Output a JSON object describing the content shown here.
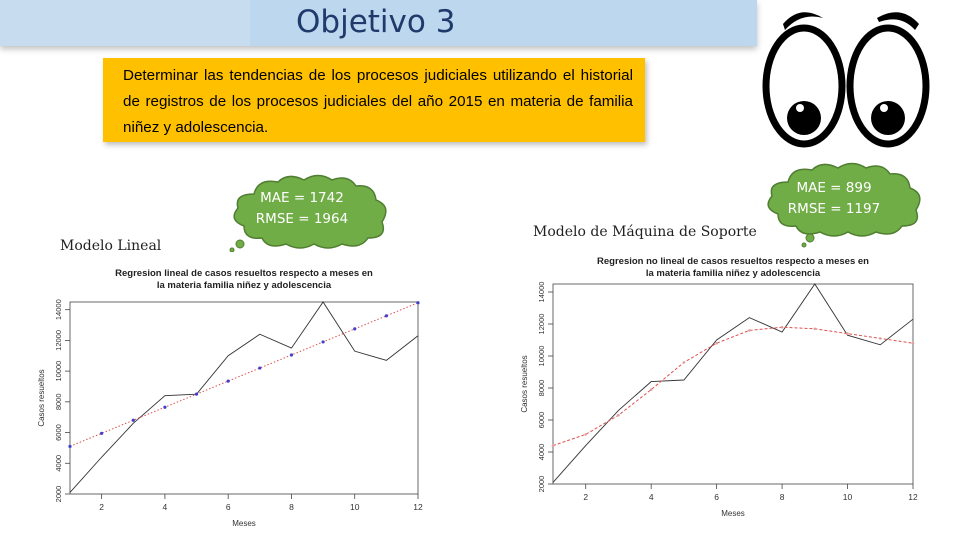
{
  "slide": {
    "title": "Objetivo 3",
    "objective": "Determinar las tendencias de los procesos judiciales utilizando el historial de registros de los procesos judiciales del año 2015 en materia de familia niñez y adolescencia."
  },
  "callouts": {
    "left": {
      "mae": "MAE = 1742",
      "rmse": "RMSE = 1964"
    },
    "right": {
      "mae": "MAE = 899",
      "rmse": "RMSE = 1197"
    }
  },
  "labels": {
    "left_model": "Modelo Lineal",
    "right_model": "Modelo de Máquina de Soporte"
  },
  "chart_data": [
    {
      "type": "line",
      "title": "Regresion lineal de casos resueltos respecto a meses en la materia familia niñez y adolescencia",
      "title_lines": [
        "Regresion lineal de casos resueltos respecto a meses en",
        "la materia familia niñez y adolescencia"
      ],
      "xlabel": "Meses",
      "ylabel": "Casos resueltos",
      "xlim": [
        1,
        12
      ],
      "ylim": [
        2000,
        14500
      ],
      "xticks": [
        2,
        4,
        6,
        8,
        10,
        12
      ],
      "yticks": [
        2000,
        4000,
        6000,
        8000,
        10000,
        12000,
        14000
      ],
      "x": [
        1,
        2,
        3,
        4,
        5,
        6,
        7,
        8,
        9,
        10,
        11,
        12
      ],
      "series": [
        {
          "values": [
            2100,
            4400,
            6600,
            8400,
            8500,
            11000,
            12400,
            11500,
            14500,
            11300,
            10700,
            12300
          ],
          "color": "#333333",
          "style": "solid"
        },
        {
          "values": [
            5100,
            5950,
            6800,
            7650,
            8500,
            9350,
            10200,
            11050,
            11900,
            12750,
            13600,
            14450
          ],
          "color": "#e05050",
          "style": "dotted",
          "markers": "#4040cc"
        }
      ]
    },
    {
      "type": "line",
      "title": "Regresion no lineal de casos resueltos respecto a meses en la materia familia niñez y adolescencia",
      "title_lines": [
        "Regresion no lineal de casos resueltos respecto a meses en",
        "la materia familia niñez y adolescencia"
      ],
      "xlabel": "Meses",
      "ylabel": "Casos resueltos",
      "xlim": [
        1,
        12
      ],
      "ylim": [
        2000,
        14500
      ],
      "xticks": [
        2,
        4,
        6,
        8,
        10,
        12
      ],
      "yticks": [
        2000,
        4000,
        6000,
        8000,
        10000,
        12000,
        14000
      ],
      "x": [
        1,
        2,
        3,
        4,
        5,
        6,
        7,
        8,
        9,
        10,
        11,
        12
      ],
      "series": [
        {
          "values": [
            2100,
            4400,
            6600,
            8400,
            8500,
            11000,
            12400,
            11500,
            14500,
            11300,
            10700,
            12300
          ],
          "color": "#333333",
          "style": "solid"
        },
        {
          "values": [
            4400,
            5100,
            6300,
            7900,
            9600,
            10800,
            11600,
            11800,
            11700,
            11400,
            11100,
            10800
          ],
          "color": "#e05050",
          "style": "dashed"
        }
      ]
    }
  ]
}
